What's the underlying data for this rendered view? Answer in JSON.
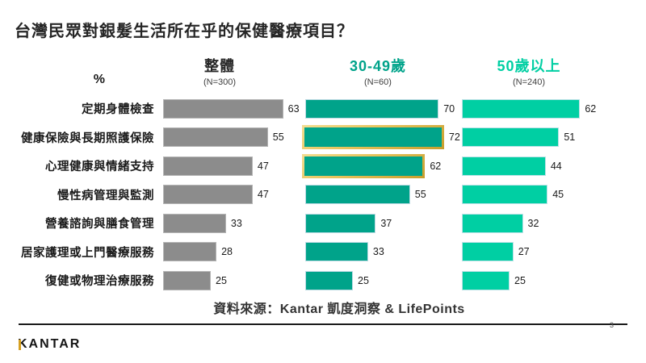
{
  "title": "台灣民眾對銀髮生活所在乎的保健醫療項目？",
  "percent_label": "%",
  "columns": [
    {
      "label": "整體",
      "n_label": "(N=300)",
      "bar_color": "#8c8c8c",
      "header_color": "#262626"
    },
    {
      "label": "30-49歲",
      "n_label": "(N=60)",
      "bar_color": "#00a38a",
      "header_color": "#00a38a"
    },
    {
      "label": "50歲以上",
      "n_label": "(N=240)",
      "bar_color": "#00cfa3",
      "header_color": "#00cfa3"
    }
  ],
  "chart_data": {
    "type": "bar",
    "orientation": "horizontal",
    "title": "台灣民眾對銀髮生活所在乎的保健醫療項目？",
    "unit": "%",
    "xlim": [
      0,
      100
    ],
    "grid": false,
    "categories": [
      "定期身體檢查",
      "健康保險與長期照護保險",
      "心理健康與情緒支持",
      "慢性病管理與監測",
      "營養諮詢與膳食管理",
      "居家護理或上門醫療服務",
      "復健或物理治療服務"
    ],
    "series": [
      {
        "name": "整體",
        "n": 300,
        "values": [
          63,
          55,
          47,
          47,
          33,
          28,
          25
        ]
      },
      {
        "name": "30-49歲",
        "n": 60,
        "values": [
          70,
          72,
          62,
          55,
          37,
          33,
          25
        ],
        "highlighted_rows": [
          1,
          2
        ]
      },
      {
        "name": "50歲以上",
        "n": 240,
        "values": [
          62,
          51,
          44,
          45,
          32,
          27,
          25
        ]
      }
    ],
    "highlight_frame_color": "#d9b64e"
  },
  "source": "資料來源：Kantar 凱度洞察 & LifePoints",
  "logo_text": "KANTAR",
  "logo_accent_color": "#d5a021",
  "page_number": "3"
}
